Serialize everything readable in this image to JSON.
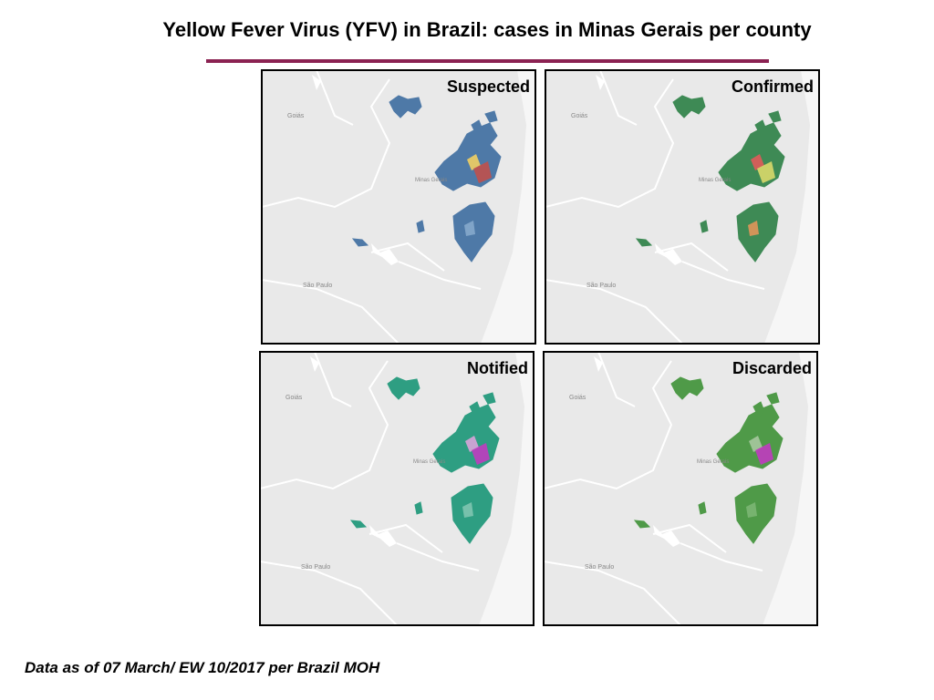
{
  "header": {
    "title": "Yellow Fever Virus (YFV) in Brazil: cases in Minas Gerais per county"
  },
  "place_labels": [
    "Goiás",
    "Minas Gerais",
    "São Paulo"
  ],
  "panels": [
    {
      "label": "Suspected"
    },
    {
      "label": "Confirmed"
    },
    {
      "label": "Notified"
    },
    {
      "label": "Discarded"
    }
  ],
  "footnote": "Data as of 07 March/ EW 10/2017 per Brazil MOH"
}
